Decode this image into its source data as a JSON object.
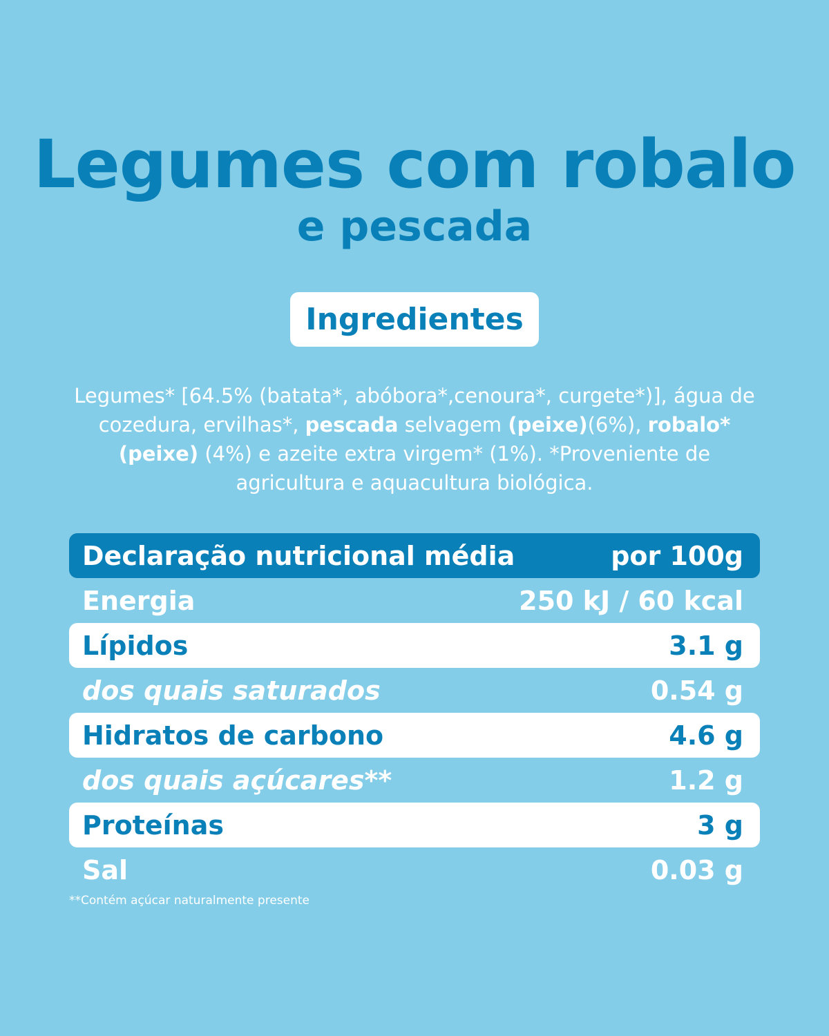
{
  "title": "Legumes com robalo",
  "subtitle": "e pescada",
  "ingredients_heading": "Ingredientes",
  "ingredients": {
    "p1": "Legumes* [64.5% (batata*, abóbora*,cenoura*, curgete*)], água de cozedura, ervilhas*, ",
    "b1": "pescada",
    "p2": " selvagem ",
    "b2": "(peixe)",
    "p3": "(6%), ",
    "b3": "robalo* (peixe)",
    "p4": " (4%) e azeite extra virgem* (1%). *Proveniente de agricultura e aquacultura biológica."
  },
  "nutrition": {
    "header_label": "Declaração nutricional média",
    "header_value": "por 100g",
    "rows": [
      {
        "label": "Energia",
        "value": "250 kJ / 60 kcal"
      },
      {
        "label": "Lípidos",
        "value": "3.1 g"
      },
      {
        "label": "dos quais saturados",
        "value": "0.54 g"
      },
      {
        "label": "Hidratos de carbono",
        "value": "4.6 g"
      },
      {
        "label": "dos quais açúcares**",
        "value": "1.2 g"
      },
      {
        "label": "Proteínas",
        "value": "3 g"
      },
      {
        "label": "Sal",
        "value": "0.03 g"
      }
    ]
  },
  "footnote": "**Contém açúcar naturalmente presente",
  "colors": {
    "background": "#84cde8",
    "accent": "#0a80b8",
    "white": "#ffffff"
  }
}
